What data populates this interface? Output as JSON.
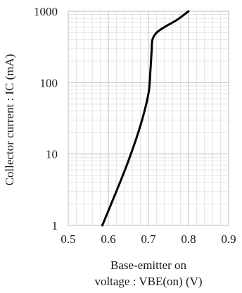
{
  "chart_data": {
    "type": "line",
    "yscale": "log",
    "xlim": [
      0.5,
      0.9
    ],
    "ylim": [
      1,
      1000
    ],
    "x_ticks": [
      0.5,
      0.6,
      0.7,
      0.8,
      0.9
    ],
    "x_tick_labels": [
      "0.5",
      "0.6",
      "0.7",
      "0.8",
      "0.9"
    ],
    "y_ticks": [
      1,
      10,
      100,
      1000
    ],
    "y_tick_labels": [
      "1",
      "10",
      "100",
      "1000"
    ],
    "xlabel_lines": [
      "Base-emitter on",
      "voltage : VBE(on) (V)"
    ],
    "ylabel": "Collector current : IC (mA)",
    "grid": true,
    "legend": "none",
    "series": [
      {
        "color": "#000000",
        "points": [
          [
            0.585,
            1
          ],
          [
            0.62,
            3
          ],
          [
            0.65,
            8
          ],
          [
            0.68,
            25
          ],
          [
            0.7,
            70
          ],
          [
            0.705,
            150
          ],
          [
            0.708,
            280
          ],
          [
            0.71,
            400
          ],
          [
            0.72,
            500
          ],
          [
            0.74,
            600
          ],
          [
            0.77,
            750
          ],
          [
            0.8,
            1000
          ]
        ]
      }
    ]
  }
}
